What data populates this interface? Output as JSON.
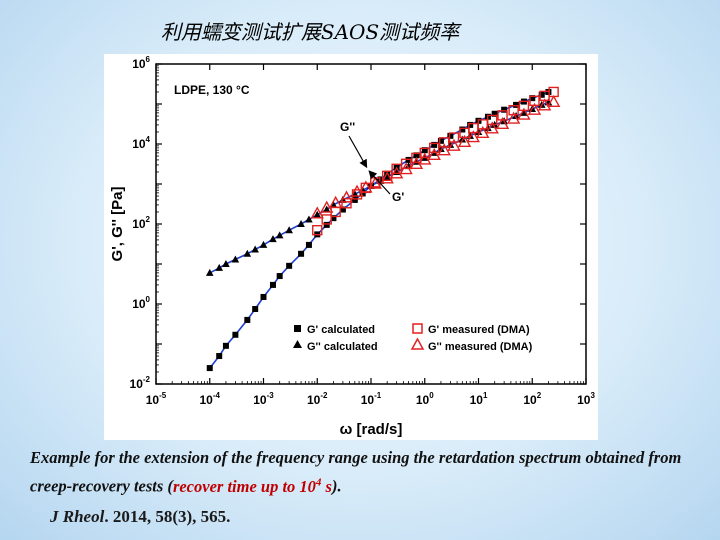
{
  "slide": {
    "title": "利用蠕变测试扩展SAOS测试频率",
    "caption_part1": "Example for the extension of the frequency range using the retardation spectrum obtained from creep-recovery tests (",
    "caption_red": "recover time up to 10",
    "caption_red_sup": "4",
    "caption_red_end": " s",
    "caption_part2": ").",
    "ref_journal": "J Rheol",
    "ref_rest": ". 2014, 58(3), 565."
  },
  "chart_data": {
    "type": "scatter",
    "xscale": "log",
    "yscale": "log",
    "xlim": [
      1e-05,
      1000
    ],
    "ylim": [
      0.01,
      1000000
    ],
    "xlabel": "ω [rad/s]",
    "ylabel": "G', G'' [Pa]",
    "xtick_labels": [
      "10-5",
      "10-4",
      "10-3",
      "10-2",
      "10-1",
      "100",
      "101",
      "102",
      "103"
    ],
    "ytick_labels": [
      "10-2",
      "100",
      "102",
      "104",
      "106"
    ],
    "annotation_sample": "LDPE, 130 °C",
    "annotation_Gpp": "G''",
    "annotation_Gp": "G'",
    "legend_position": "bottom-right",
    "series": [
      {
        "name": "G' calculated",
        "marker": "square-filled",
        "color": "#000000",
        "x": [
          0.0001,
          0.00015,
          0.0002,
          0.0003,
          0.0005,
          0.0007,
          0.001,
          0.0015,
          0.002,
          0.003,
          0.005,
          0.007,
          0.01,
          0.015,
          0.02,
          0.03,
          0.05,
          0.07,
          0.1,
          0.15,
          0.2,
          0.3,
          0.5,
          0.7,
          1,
          1.5,
          2,
          3,
          5,
          7,
          10,
          15,
          20,
          30,
          50,
          70,
          100,
          150,
          200
        ],
        "y": [
          0.025,
          0.05,
          0.09,
          0.17,
          0.4,
          0.75,
          1.5,
          3,
          5,
          9,
          18,
          30,
          55,
          95,
          140,
          230,
          400,
          580,
          900,
          1300,
          1800,
          2600,
          4000,
          5200,
          7000,
          9500,
          12000,
          16000,
          23000,
          30000,
          38000,
          48000,
          57000,
          72000,
          95000,
          115000,
          140000,
          170000,
          200000
        ]
      },
      {
        "name": "G'' calculated",
        "marker": "triangle-filled",
        "color": "#000000",
        "x": [
          0.0001,
          0.00015,
          0.0002,
          0.0003,
          0.0005,
          0.0007,
          0.001,
          0.0015,
          0.002,
          0.003,
          0.005,
          0.007,
          0.01,
          0.015,
          0.02,
          0.03,
          0.05,
          0.07,
          0.1,
          0.15,
          0.2,
          0.3,
          0.5,
          0.7,
          1,
          1.5,
          2,
          3,
          5,
          7,
          10,
          15,
          20,
          30,
          50,
          70,
          100,
          150,
          200
        ],
        "y": [
          6,
          8,
          10,
          13,
          18,
          23,
          30,
          42,
          52,
          70,
          100,
          130,
          170,
          230,
          300,
          400,
          560,
          700,
          900,
          1200,
          1500,
          2000,
          2800,
          3600,
          4500,
          6000,
          7500,
          9500,
          13000,
          16000,
          20000,
          25000,
          30000,
          37000,
          50000,
          60000,
          75000,
          95000,
          110000
        ]
      },
      {
        "name": "G' measured (DMA)",
        "marker": "square-open",
        "color": "#e02020",
        "x": [
          0.01,
          0.015,
          0.022,
          0.035,
          0.055,
          0.08,
          0.12,
          0.2,
          0.3,
          0.45,
          0.7,
          1,
          1.5,
          2.3,
          3.5,
          5.5,
          8,
          12,
          18,
          28,
          45,
          70,
          110,
          170,
          250
        ],
        "y": [
          70,
          130,
          200,
          330,
          550,
          800,
          1100,
          1600,
          2400,
          3200,
          4500,
          6000,
          8000,
          11000,
          14500,
          19000,
          25000,
          31000,
          40000,
          52000,
          70000,
          90000,
          120000,
          160000,
          200000
        ]
      },
      {
        "name": "G'' measured (DMA)",
        "marker": "triangle-open",
        "color": "#e02020",
        "x": [
          0.01,
          0.015,
          0.022,
          0.035,
          0.055,
          0.08,
          0.12,
          0.2,
          0.3,
          0.45,
          0.7,
          1,
          1.5,
          2.3,
          3.5,
          5.5,
          8,
          12,
          18,
          28,
          45,
          70,
          110,
          170,
          250
        ],
        "y": [
          180,
          250,
          330,
          450,
          630,
          800,
          1000,
          1350,
          1800,
          2300,
          3100,
          4000,
          5200,
          6800,
          8800,
          11000,
          14500,
          18500,
          24000,
          31000,
          42000,
          53000,
          70000,
          90000,
          110000
        ]
      }
    ]
  }
}
